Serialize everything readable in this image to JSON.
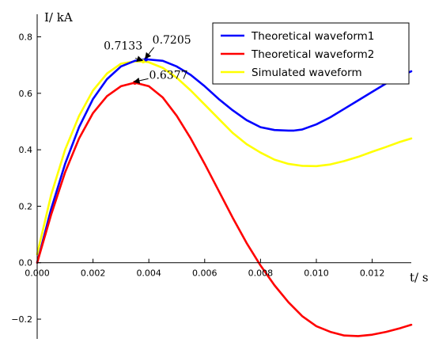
{
  "chart_data": {
    "type": "line",
    "xlabel": "t/ s",
    "ylabel": "I/ kA",
    "xlim": [
      0,
      0.0134
    ],
    "ylim": [
      -0.27,
      0.88
    ],
    "x_ticks": [
      0,
      0.002,
      0.004,
      0.006,
      0.008,
      0.01,
      0.012
    ],
    "x_tick_labels": [
      "0.000",
      "0.002",
      "0.004",
      "0.006",
      "0.008",
      "0.010",
      "0.012"
    ],
    "y_ticks": [
      -0.2,
      0,
      0.2,
      0.4,
      0.6,
      0.8
    ],
    "y_tick_labels": [
      "−0.2",
      "0.0",
      "0.2",
      "0.4",
      "0.6",
      "0.8"
    ],
    "grid": false,
    "legend_position": "top-right",
    "series": [
      {
        "name": "Theoretical waveform1",
        "color": "#0000ff",
        "x": [
          0,
          0.0005,
          0.001,
          0.0015,
          0.002,
          0.0025,
          0.003,
          0.0035,
          0.0039,
          0.0045,
          0.005,
          0.0055,
          0.006,
          0.0065,
          0.007,
          0.0075,
          0.008,
          0.0085,
          0.009,
          0.0092,
          0.0095,
          0.01,
          0.0105,
          0.011,
          0.0115,
          0.012,
          0.0125,
          0.013,
          0.0134
        ],
        "y": [
          0.0,
          0.19,
          0.35,
          0.48,
          0.58,
          0.65,
          0.695,
          0.715,
          0.7205,
          0.715,
          0.695,
          0.665,
          0.625,
          0.58,
          0.54,
          0.505,
          0.48,
          0.47,
          0.468,
          0.468,
          0.472,
          0.49,
          0.515,
          0.545,
          0.575,
          0.605,
          0.635,
          0.66,
          0.678
        ]
      },
      {
        "name": "Theoretical waveform2",
        "color": "#ff0000",
        "x": [
          0,
          0.0005,
          0.001,
          0.0015,
          0.002,
          0.0025,
          0.003,
          0.0035,
          0.004,
          0.0045,
          0.005,
          0.0055,
          0.006,
          0.0065,
          0.007,
          0.0075,
          0.008,
          0.0085,
          0.009,
          0.0095,
          0.01,
          0.0105,
          0.011,
          0.0115,
          0.012,
          0.0125,
          0.013,
          0.0134
        ],
        "y": [
          0.0,
          0.17,
          0.32,
          0.44,
          0.53,
          0.59,
          0.625,
          0.6377,
          0.625,
          0.585,
          0.52,
          0.44,
          0.35,
          0.255,
          0.16,
          0.07,
          -0.01,
          -0.08,
          -0.14,
          -0.19,
          -0.225,
          -0.245,
          -0.258,
          -0.26,
          -0.255,
          -0.245,
          -0.232,
          -0.22
        ]
      },
      {
        "name": "Simulated waveform",
        "color": "#ffff00",
        "x": [
          0,
          0.0005,
          0.001,
          0.0015,
          0.002,
          0.0025,
          0.003,
          0.0035,
          0.0038,
          0.004,
          0.0045,
          0.005,
          0.0055,
          0.006,
          0.0065,
          0.007,
          0.0075,
          0.008,
          0.0085,
          0.009,
          0.0095,
          0.01,
          0.0105,
          0.011,
          0.0115,
          0.012,
          0.0125,
          0.013,
          0.0134
        ],
        "y": [
          0.03,
          0.24,
          0.4,
          0.52,
          0.61,
          0.67,
          0.705,
          0.713,
          0.7133,
          0.71,
          0.69,
          0.655,
          0.61,
          0.56,
          0.51,
          0.46,
          0.42,
          0.39,
          0.365,
          0.35,
          0.343,
          0.342,
          0.348,
          0.36,
          0.375,
          0.393,
          0.41,
          0.428,
          0.44
        ]
      }
    ],
    "annotations": [
      {
        "text": "0.7133",
        "x": 0.0038,
        "y": 0.7133
      },
      {
        "text": "0.7205",
        "x": 0.0039,
        "y": 0.7205
      },
      {
        "text": "0.6377",
        "x": 0.0035,
        "y": 0.6377
      }
    ]
  }
}
